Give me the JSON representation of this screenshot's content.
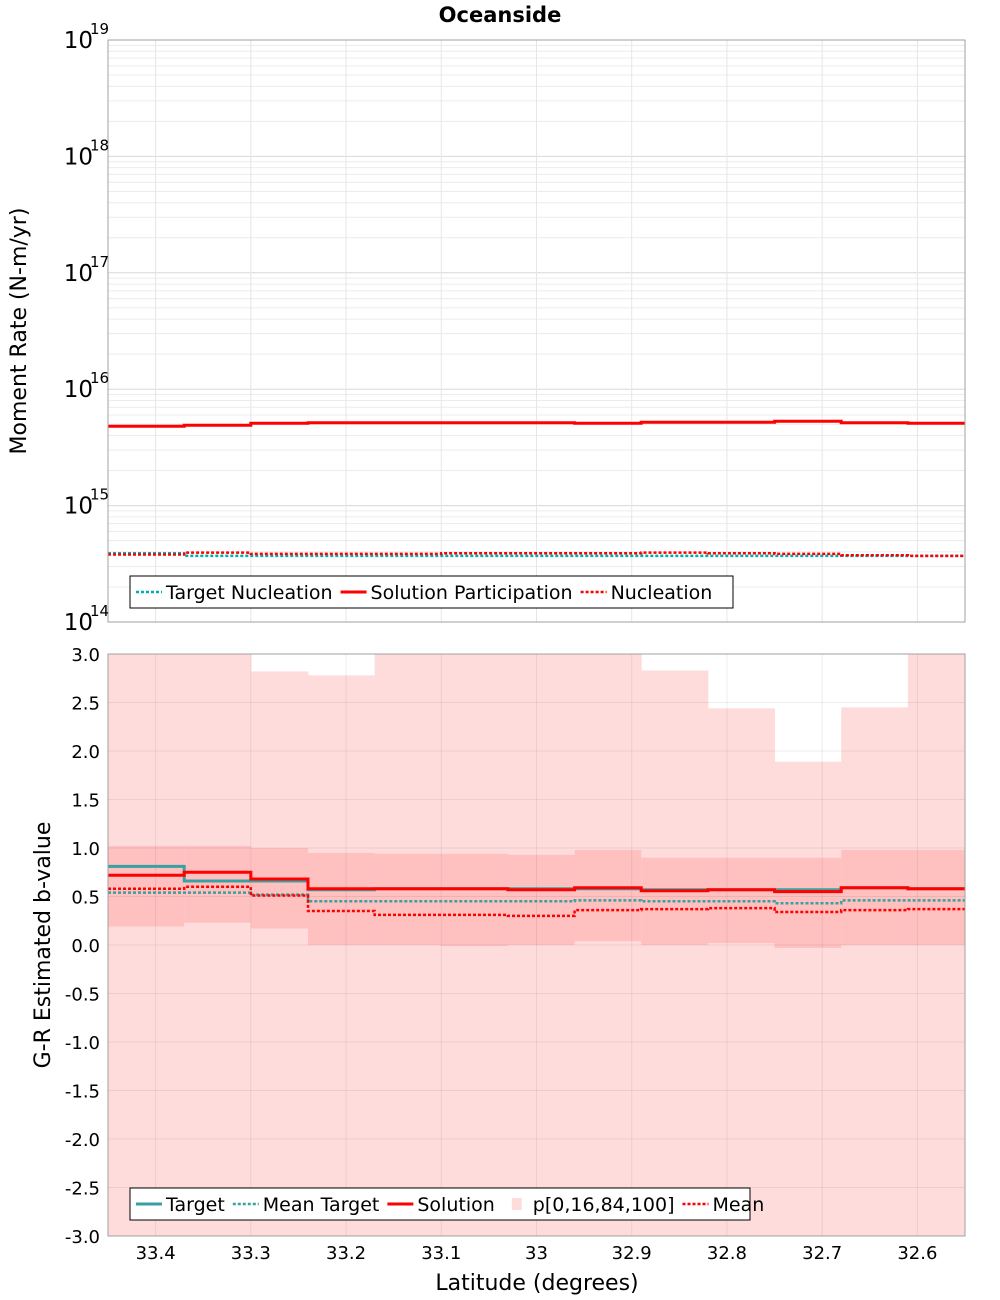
{
  "figure": {
    "title": "Oceanside",
    "xlabel": "Latitude (degrees)"
  },
  "chart_data": [
    {
      "type": "line",
      "scale": "log",
      "ylabel": "Moment Rate (N-m/yr)",
      "y_ticks": [
        {
          "base": "10",
          "exp": "14"
        },
        {
          "base": "10",
          "exp": "15"
        },
        {
          "base": "10",
          "exp": "16"
        },
        {
          "base": "10",
          "exp": "17"
        },
        {
          "base": "10",
          "exp": "18"
        },
        {
          "base": "10",
          "exp": "19"
        }
      ],
      "ylim_log10": [
        14,
        19
      ],
      "xlim": [
        33.45,
        32.55
      ],
      "bin_edges": [
        33.45,
        33.37,
        33.3,
        33.24,
        33.17,
        33.1,
        33.03,
        32.96,
        32.89,
        32.82,
        32.75,
        32.68,
        32.61,
        32.55
      ],
      "series": [
        {
          "name": "Target Nucleation",
          "color": "#00b0b0",
          "style": "dotted",
          "values": [
            390000000000000.0,
            370000000000000.0,
            370000000000000.0,
            370000000000000.0,
            370000000000000.0,
            370000000000000.0,
            370000000000000.0,
            370000000000000.0,
            370000000000000.0,
            370000000000000.0,
            370000000000000.0,
            370000000000000.0,
            370000000000000.0
          ]
        },
        {
          "name": "Solution Participation",
          "color": "#ff0000",
          "style": "solid",
          "values": [
            4800000000000000.0,
            4900000000000000.0,
            5100000000000000.0,
            5150000000000000.0,
            5150000000000000.0,
            5150000000000000.0,
            5150000000000000.0,
            5100000000000000.0,
            5200000000000000.0,
            5200000000000000.0,
            5300000000000000.0,
            5150000000000000.0,
            5100000000000000.0
          ]
        },
        {
          "name": "Nucleation",
          "color": "#ff0000",
          "style": "dotted",
          "values": [
            380000000000000.0,
            395000000000000.0,
            385000000000000.0,
            385000000000000.0,
            385000000000000.0,
            390000000000000.0,
            390000000000000.0,
            390000000000000.0,
            395000000000000.0,
            390000000000000.0,
            385000000000000.0,
            375000000000000.0,
            370000000000000.0
          ]
        }
      ],
      "legend": [
        "Target Nucleation",
        "Solution Participation",
        "Nucleation"
      ],
      "legend_position": "bottom-left"
    },
    {
      "type": "line",
      "ylabel": "G-R Estimated b-value",
      "ylim": [
        -3,
        3
      ],
      "y_ticks": [
        "-3.0",
        "-2.5",
        "-2.0",
        "-1.5",
        "-1.0",
        "-0.5",
        "0.0",
        "0.5",
        "1.0",
        "1.5",
        "2.0",
        "2.5",
        "3.0"
      ],
      "x_ticks": [
        "33.4",
        "33.3",
        "33.2",
        "33.1",
        "33",
        "32.9",
        "32.8",
        "32.7",
        "32.6"
      ],
      "x_tick_values": [
        33.4,
        33.3,
        33.2,
        33.1,
        33.0,
        32.9,
        32.8,
        32.7,
        32.6
      ],
      "xlim": [
        33.45,
        32.55
      ],
      "bin_edges": [
        33.45,
        33.37,
        33.3,
        33.24,
        33.17,
        33.1,
        33.03,
        32.96,
        32.89,
        32.82,
        32.75,
        32.68,
        32.61,
        32.55
      ],
      "band_outer": {
        "name": "p[0,16,84,100]",
        "color": "#ffdcdc",
        "low": [
          -3,
          -3,
          -3,
          -3,
          -3,
          -3,
          -3,
          -3,
          -3,
          -3,
          -3,
          -3,
          -3
        ],
        "high": [
          3,
          3,
          2.82,
          2.78,
          3,
          3,
          3,
          3,
          2.83,
          2.44,
          1.89,
          2.45,
          3
        ]
      },
      "band_inner": {
        "color": "#ffc0c0",
        "low": [
          0.19,
          0.23,
          0.17,
          0.0,
          0.0,
          -0.01,
          0.0,
          0.04,
          0.0,
          0.02,
          -0.03,
          0.0,
          0.0
        ],
        "high": [
          1.02,
          1.02,
          1.0,
          0.95,
          0.94,
          0.94,
          0.93,
          0.98,
          0.9,
          0.9,
          0.9,
          0.98,
          0.98
        ]
      },
      "series": [
        {
          "name": "Target",
          "color": "#3aa0a0",
          "style": "solid",
          "values": [
            0.81,
            0.66,
            0.66,
            0.57,
            0.58,
            0.58,
            0.58,
            0.58,
            0.57,
            0.57,
            0.57,
            0.59,
            0.58
          ]
        },
        {
          "name": "Mean Target",
          "color": "#3aa0a0",
          "style": "dotted",
          "values": [
            0.54,
            0.54,
            0.52,
            0.45,
            0.45,
            0.45,
            0.45,
            0.46,
            0.45,
            0.45,
            0.43,
            0.46,
            0.46
          ]
        },
        {
          "name": "Solution",
          "color": "#ff0000",
          "style": "solid",
          "values": [
            0.72,
            0.75,
            0.68,
            0.58,
            0.58,
            0.58,
            0.57,
            0.59,
            0.56,
            0.57,
            0.55,
            0.59,
            0.58
          ]
        },
        {
          "name": "Mean",
          "color": "#ff0000",
          "style": "dotted",
          "values": [
            0.58,
            0.6,
            0.51,
            0.35,
            0.31,
            0.31,
            0.3,
            0.36,
            0.37,
            0.38,
            0.34,
            0.36,
            0.37
          ]
        }
      ],
      "legend": [
        "Target",
        "Mean Target",
        "Solution",
        "p[0,16,84,100]",
        "Mean"
      ],
      "legend_position": "bottom-left"
    }
  ]
}
